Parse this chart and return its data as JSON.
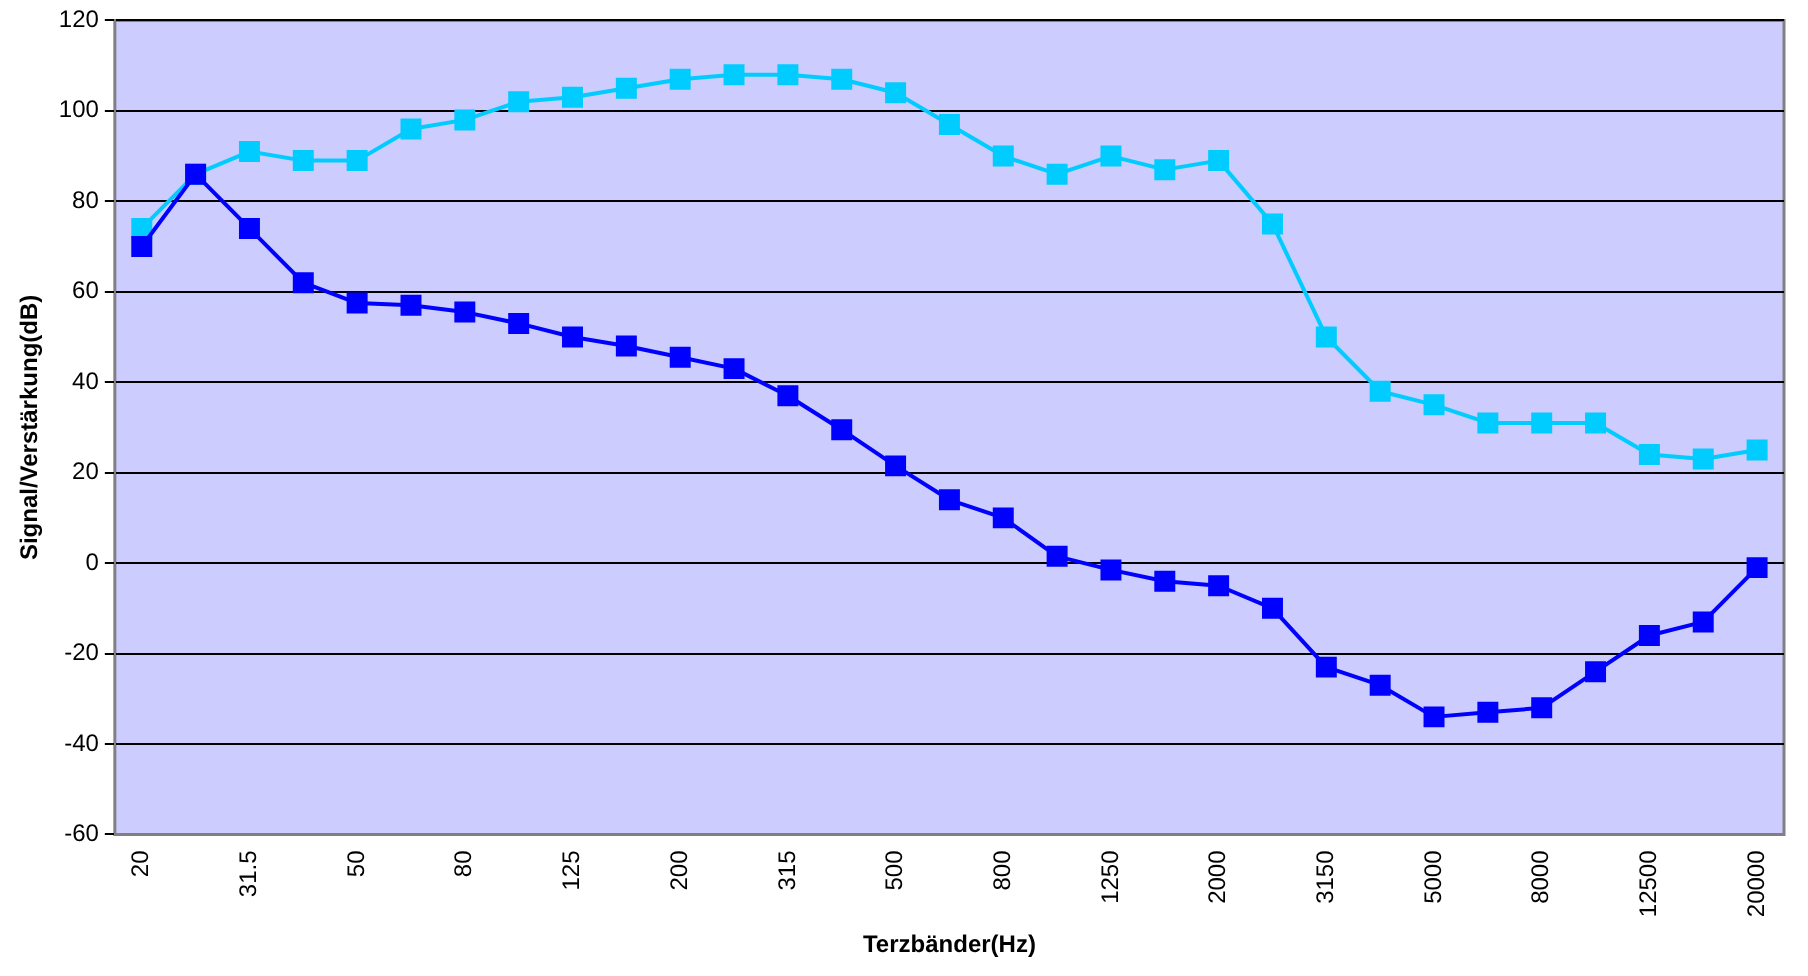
{
  "chart_data": {
    "type": "line",
    "xlabel": "Terzbänder(Hz)",
    "ylabel": "Signal/Verstärkung(dB)",
    "categories": [
      "20",
      null,
      "31.5",
      null,
      "50",
      null,
      "80",
      null,
      "125",
      null,
      "200",
      null,
      "315",
      null,
      "500",
      null,
      "800",
      null,
      "1250",
      null,
      "2000",
      null,
      "3150",
      null,
      "5000",
      null,
      "8000",
      null,
      "12500",
      null,
      "20000"
    ],
    "series": [
      {
        "color": "#00ccff",
        "values": [
          74,
          86,
          91,
          89,
          89,
          96,
          98,
          102,
          103,
          105,
          107,
          108,
          108,
          107,
          104,
          97,
          90,
          86,
          90,
          87,
          89,
          75,
          50,
          38,
          35,
          31,
          31,
          31,
          24,
          23,
          25
        ]
      },
      {
        "color": "#0000ff",
        "values": [
          70,
          86,
          74,
          62,
          57.5,
          57,
          55.5,
          53,
          50,
          48,
          45.5,
          43,
          37,
          29.5,
          21.5,
          14,
          10,
          1.5,
          -1.5,
          -4,
          -5,
          -10,
          -23,
          -27,
          -34,
          -33,
          -32,
          -24,
          -16,
          -13,
          -1
        ]
      }
    ],
    "ylim": [
      -60,
      120
    ],
    "yticks": [
      -60,
      -40,
      -20,
      0,
      20,
      40,
      60,
      80,
      100,
      120
    ],
    "grid": "y",
    "legend": false,
    "marker": "square",
    "line_style": "solid"
  }
}
